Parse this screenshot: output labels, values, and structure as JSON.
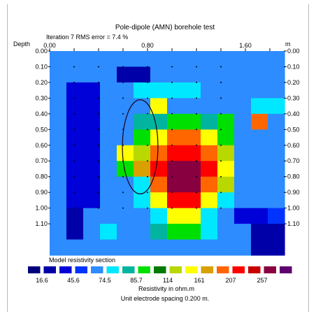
{
  "chart_data": {
    "type": "heatmap",
    "title": "Pole-dipole (AMN) borehole test",
    "subtitle": "Iteration 7 RMS error = 7.4 %",
    "depth_label": "Depth",
    "x_ticks": [
      "0.00",
      "0.80",
      "1.60"
    ],
    "x_unit": "m",
    "depth_ticks_left": [
      "0.00",
      "0.10",
      "0.20",
      "0.30",
      "0.40",
      "0.50",
      "0.60",
      "0.70",
      "0.80",
      "0.90",
      "1.00",
      "1.10"
    ],
    "depth_ticks_right": [
      "0.00",
      "0.10",
      "0.20",
      "0.30",
      "0.40",
      "0.50",
      "0.60",
      "0.70",
      "0.80",
      "0.90",
      "1.00",
      "1.10"
    ],
    "xlim": [
      0.0,
      1.92
    ],
    "ylim": [
      0.0,
      1.3
    ],
    "section_label": "Model resistivity section",
    "colorbar_values": [
      "16.6",
      "45.6",
      "74.5",
      "85.7",
      "114",
      "161",
      "207",
      "257"
    ],
    "colorbar_colors": [
      "#00007b",
      "#0000a8",
      "#0000d8",
      "#0033ff",
      "#2d8cff",
      "#00e8ff",
      "#00b4a0",
      "#00e000",
      "#007a00",
      "#b8d800",
      "#ffff00",
      "#d8a000",
      "#ff6600",
      "#ff0000",
      "#c80000",
      "#880040",
      "#600070"
    ],
    "xlabel": "Resistivity in ohm.m",
    "footnote": "Unit electrode spacing 0.200 m.",
    "grid": {
      "cols": 14,
      "rows": 13,
      "values": [
        [
          4,
          4,
          4,
          4,
          4,
          4,
          4,
          4,
          4,
          4,
          4,
          4,
          4,
          4
        ],
        [
          4,
          4,
          4,
          4,
          1,
          1,
          4,
          4,
          4,
          4,
          4,
          4,
          4,
          4
        ],
        [
          4,
          2,
          2,
          4,
          4,
          5,
          5,
          5,
          5,
          4,
          4,
          4,
          4,
          4
        ],
        [
          4,
          2,
          2,
          4,
          4,
          4,
          10,
          4,
          4,
          4,
          4,
          4,
          5,
          5
        ],
        [
          4,
          2,
          2,
          4,
          4,
          6,
          6,
          7,
          7,
          6,
          7,
          4,
          12,
          4
        ],
        [
          4,
          2,
          2,
          4,
          4,
          7,
          10,
          12,
          12,
          10,
          7,
          4,
          4,
          4
        ],
        [
          4,
          2,
          2,
          4,
          10,
          9,
          12,
          13,
          13,
          12,
          9,
          4,
          4,
          4
        ],
        [
          4,
          2,
          2,
          4,
          7,
          11,
          13,
          15,
          15,
          13,
          10,
          4,
          4,
          4
        ],
        [
          4,
          2,
          2,
          4,
          4,
          5,
          12,
          15,
          15,
          12,
          9,
          4,
          4,
          4
        ],
        [
          4,
          2,
          2,
          4,
          4,
          5,
          10,
          13,
          13,
          10,
          5,
          4,
          4,
          4
        ],
        [
          4,
          1,
          4,
          4,
          4,
          4,
          5,
          10,
          10,
          5,
          4,
          2,
          2,
          3
        ],
        [
          4,
          1,
          4,
          5,
          4,
          4,
          6,
          7,
          7,
          5,
          4,
          4,
          1,
          1
        ],
        [
          4,
          4,
          4,
          4,
          4,
          4,
          4,
          4,
          4,
          4,
          4,
          4,
          1,
          1
        ]
      ]
    },
    "ellipse": {
      "cx": 0.74,
      "cy": 0.61,
      "rx": 0.145,
      "ry": 0.3
    },
    "grid_on": false,
    "legend_placement": "bottom"
  }
}
